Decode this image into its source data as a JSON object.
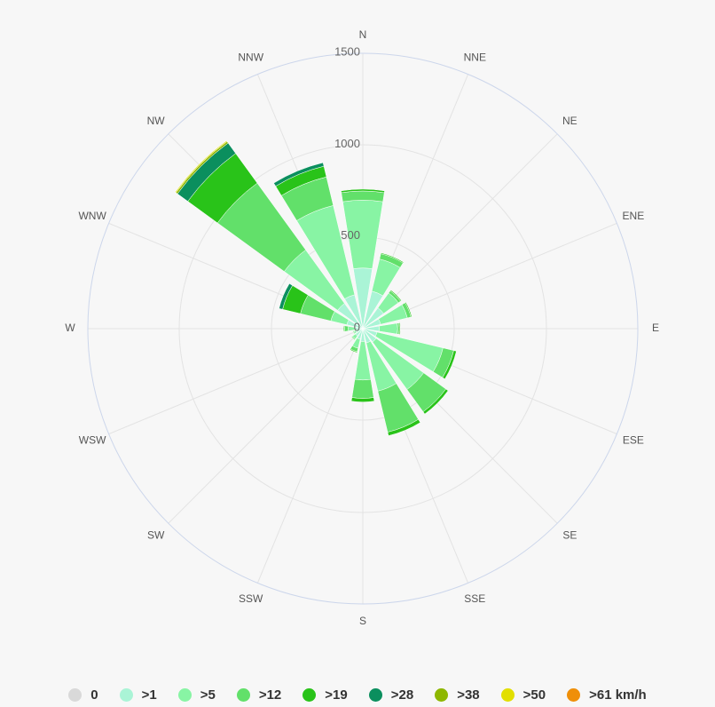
{
  "chart_data": {
    "type": "rose",
    "directions": [
      "N",
      "NNE",
      "NE",
      "ENE",
      "E",
      "ESE",
      "SE",
      "SSE",
      "S",
      "SSW",
      "SW",
      "WSW",
      "W",
      "WNW",
      "NW",
      "NNW"
    ],
    "radial_ticks": [
      "0",
      "500",
      "1000",
      "1500"
    ],
    "rmax": 1500,
    "series": [
      {
        "name": "0",
        "color": "#d9d9d9",
        "values": [
          0,
          0,
          0,
          0,
          0,
          0,
          0,
          0,
          0,
          0,
          0,
          0,
          0,
          0,
          0,
          0
        ]
      },
      {
        "name": ">1",
        "color": "#aaf4d6",
        "values": [
          330,
          210,
          140,
          100,
          90,
          80,
          90,
          80,
          70,
          60,
          50,
          40,
          40,
          90,
          170,
          190
        ]
      },
      {
        "name": ">5",
        "color": "#88f4a4",
        "values": [
          370,
          180,
          100,
          150,
          100,
          370,
          320,
          270,
          210,
          50,
          20,
          10,
          40,
          90,
          360,
          500
        ]
      },
      {
        "name": ">12",
        "color": "#62e06a",
        "values": [
          50,
          30,
          15,
          20,
          10,
          60,
          150,
          230,
          100,
          20,
          5,
          5,
          20,
          170,
          450,
          160
        ]
      },
      {
        "name": ">19",
        "color": "#29c319",
        "values": [
          10,
          5,
          5,
          5,
          5,
          15,
          15,
          20,
          20,
          5,
          2,
          2,
          5,
          100,
          200,
          60
        ]
      },
      {
        "name": ">28",
        "color": "#0b8f5e",
        "values": [
          0,
          0,
          0,
          0,
          0,
          0,
          0,
          0,
          0,
          0,
          0,
          0,
          0,
          20,
          70,
          20
        ]
      },
      {
        "name": ">38",
        "color": "#8db700",
        "values": [
          0,
          0,
          0,
          0,
          0,
          0,
          0,
          0,
          0,
          0,
          0,
          0,
          0,
          0,
          10,
          0
        ]
      },
      {
        "name": ">50",
        "color": "#e2df00",
        "values": [
          0,
          0,
          0,
          0,
          0,
          0,
          0,
          0,
          0,
          0,
          0,
          0,
          0,
          0,
          5,
          0
        ]
      },
      {
        "name": ">61 km/h",
        "color": "#ef8f09",
        "values": [
          0,
          0,
          0,
          0,
          0,
          0,
          0,
          0,
          0,
          0,
          0,
          0,
          0,
          0,
          0,
          0
        ]
      }
    ],
    "grid": true,
    "legend_position": "bottom"
  },
  "legend": [
    {
      "label": "0",
      "color": "#d9d9d9"
    },
    {
      "label": ">1",
      "color": "#aaf4d6"
    },
    {
      "label": ">5",
      "color": "#88f4a4"
    },
    {
      "label": ">12",
      "color": "#62e06a"
    },
    {
      "label": ">19",
      "color": "#29c319"
    },
    {
      "label": ">28",
      "color": "#0b8f5e"
    },
    {
      "label": ">38",
      "color": "#8db700"
    },
    {
      "label": ">50",
      "color": "#e2df00"
    },
    {
      "label": ">61 km/h",
      "color": "#ef8f09"
    }
  ],
  "colors": {
    "grid": "#e3e3e3",
    "outer_ring": "#ccd6eb",
    "background": "#f7f7f7"
  }
}
